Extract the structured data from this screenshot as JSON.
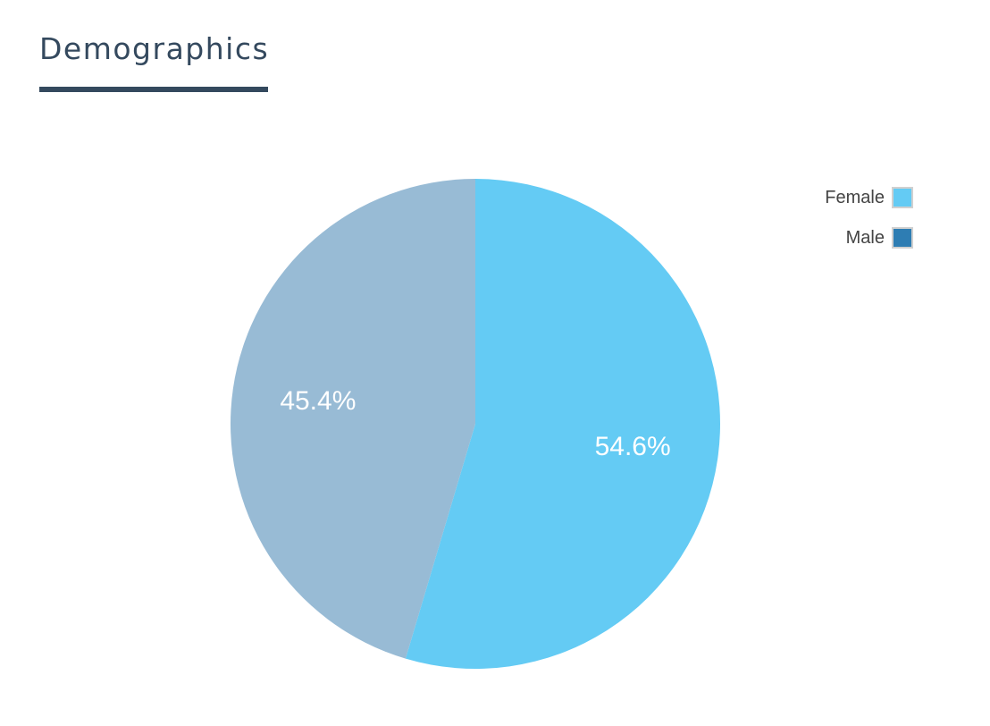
{
  "header": {
    "title": "Demographics"
  },
  "chart_data": {
    "type": "pie",
    "title": "",
    "categories": [
      "Female",
      "Male"
    ],
    "values": [
      54.6,
      45.4
    ],
    "value_labels": [
      "54.6%",
      "45.4%"
    ],
    "slice_colors": [
      "#64cbf4",
      "#98bbd5"
    ],
    "legend": {
      "placement": "top-right",
      "entries": [
        {
          "label": "Female",
          "swatch_color": "#64cbf4"
        },
        {
          "label": "Male",
          "swatch_color": "#2e7db3"
        }
      ]
    }
  }
}
